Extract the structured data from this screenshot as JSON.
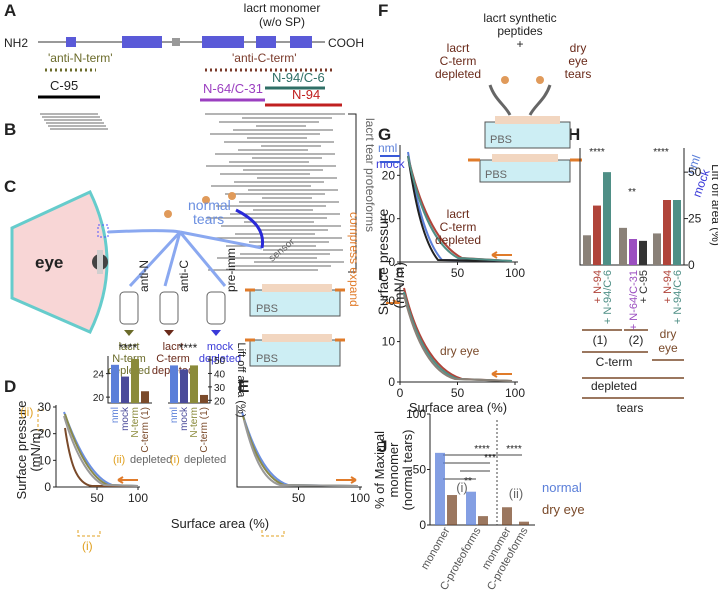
{
  "panel_labels": [
    "A",
    "B",
    "C",
    "D",
    "E",
    "F",
    "G",
    "H",
    "I",
    "J"
  ],
  "a": {
    "title_line1": "lacrt monomer",
    "title_line2": "(w/o SP)",
    "n_end": "NH2",
    "c_end": "COOH",
    "anti_n": "'anti-N-term'",
    "anti_c": "'anti-C-term'",
    "peptides": [
      "C-95",
      "N-64/C-31",
      "N-94/C-6",
      "N-94"
    ]
  },
  "b": {
    "label": "lacrt tear proteoforms"
  },
  "c": {
    "eye": "eye",
    "normal_tears": [
      "normal",
      "tears"
    ],
    "antibodies": [
      "anti-N",
      "anti-C",
      "pre-imm"
    ],
    "depleted_n": [
      "lacrt",
      "N-term",
      "depleted"
    ],
    "depleted_c": [
      "lacrt",
      "C-term",
      "depleted"
    ],
    "depleted_mock": [
      "mock",
      "depleted"
    ],
    "sensor": "sensor",
    "pbs": "PBS",
    "compress_expand": "compress expand"
  },
  "d": {
    "y_label": "Surface pressure",
    "y_unit": "(mN/m)",
    "x_label": "Surface area (%)",
    "xlim": [
      0,
      100
    ],
    "ylim": [
      0,
      30
    ],
    "xticks": [
      50,
      100
    ],
    "yticks": [
      0,
      10,
      20,
      30
    ],
    "mark_ii": "(ii)",
    "mark_i": "(i)",
    "inset": {
      "sig": "****",
      "categories": [
        "nml",
        "mock",
        "N-term",
        "C-term (1)"
      ],
      "colors": [
        "#5b7fd9",
        "#4a4a9a",
        "#8a8a3a",
        "#7a4a2a"
      ],
      "pressure_values": [
        25.5,
        23.5,
        26.5,
        21
      ],
      "pressure_ylim": [
        19,
        27
      ],
      "pressure_ticks": [
        20,
        24
      ],
      "lift_off_values": [
        46,
        43,
        46,
        24
      ],
      "lift_off_ylim": [
        18,
        53
      ],
      "lift_off_ticks": [
        20,
        30,
        40,
        50
      ],
      "lift_off_label": "Lift off area (%)",
      "group_ii": "(ii)",
      "group_i": "(i)",
      "depleted": "depleted"
    }
  },
  "e": {
    "xlim": [
      0,
      100
    ],
    "ylim": [
      0,
      30
    ],
    "xticks": [
      50,
      100
    ]
  },
  "f": {
    "line1": "lacrt synthetic",
    "line2": "peptides",
    "plus": "+",
    "left": [
      "lacrt",
      "C-term",
      "depleted"
    ],
    "right": [
      "dry",
      "eye",
      "tears"
    ]
  },
  "g": {
    "y_label": "Surface pressure",
    "y_unit": "(mN/m)",
    "nml": "nml",
    "mock": "mock",
    "depleted": [
      "lacrt",
      "C-term",
      "depleted"
    ],
    "pbs": "PBS",
    "xlim": [
      0,
      100
    ],
    "ylim": [
      0,
      27
    ],
    "xticks": [
      0,
      50,
      100
    ],
    "yticks": [
      0,
      10,
      20
    ]
  },
  "h": {
    "y_label": "Lift off area (%)",
    "nml": "nml",
    "mock": "mock",
    "ylim": [
      0,
      63
    ],
    "yticks": [
      0,
      25,
      50
    ],
    "categories": [
      null,
      "+ N-94",
      "+ N-94/C-6",
      null,
      "+ N-64/C-31",
      "+ C-95",
      null,
      "+ N-94",
      "+ N-94/C-6"
    ],
    "values": [
      16,
      32,
      50,
      20,
      14,
      13,
      17,
      35,
      35
    ],
    "colors": [
      "#8a8178",
      "#b0443a",
      "#4f8f86",
      "#8a8178",
      "#9b4fc0",
      "#333333",
      "#8a8178",
      "#b0443a",
      "#4f8f86"
    ],
    "sig": [
      "****",
      "**",
      "****"
    ],
    "group_1": "(1)",
    "group_2": "(2)",
    "c_term": "C-term",
    "depleted": "depleted",
    "dry_eye": [
      "dry",
      "eye"
    ],
    "tears": "tears"
  },
  "i": {
    "label": "dry eye",
    "x_label": "Surface area (%)",
    "xlim": [
      0,
      100
    ],
    "ylim": [
      0,
      24
    ],
    "xticks": [
      0,
      50,
      100
    ],
    "yticks": [
      0,
      10,
      20
    ]
  },
  "j": {
    "y_label": [
      "% of Maximal",
      "monomer",
      "(normal tears)"
    ],
    "ylim": [
      0,
      100
    ],
    "yticks": [
      0,
      50,
      100
    ],
    "categories": [
      "monomer",
      "C-proteoforms",
      "monomer",
      "C-proteoforms"
    ],
    "group_i": "(i)",
    "group_ii": "(ii)",
    "series": [
      {
        "name": "normal",
        "color": "#5b7fd9",
        "values": [
          65,
          30,
          null,
          null
        ]
      },
      {
        "name": "dry eye",
        "color": "#7a4a2a",
        "values": [
          27,
          8,
          16,
          3
        ]
      }
    ],
    "sig": [
      "****",
      "***",
      "**",
      "****"
    ]
  }
}
